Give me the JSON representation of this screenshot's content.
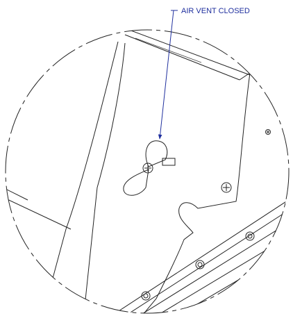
{
  "callout": {
    "label": "AIR VENT CLOSED"
  }
}
